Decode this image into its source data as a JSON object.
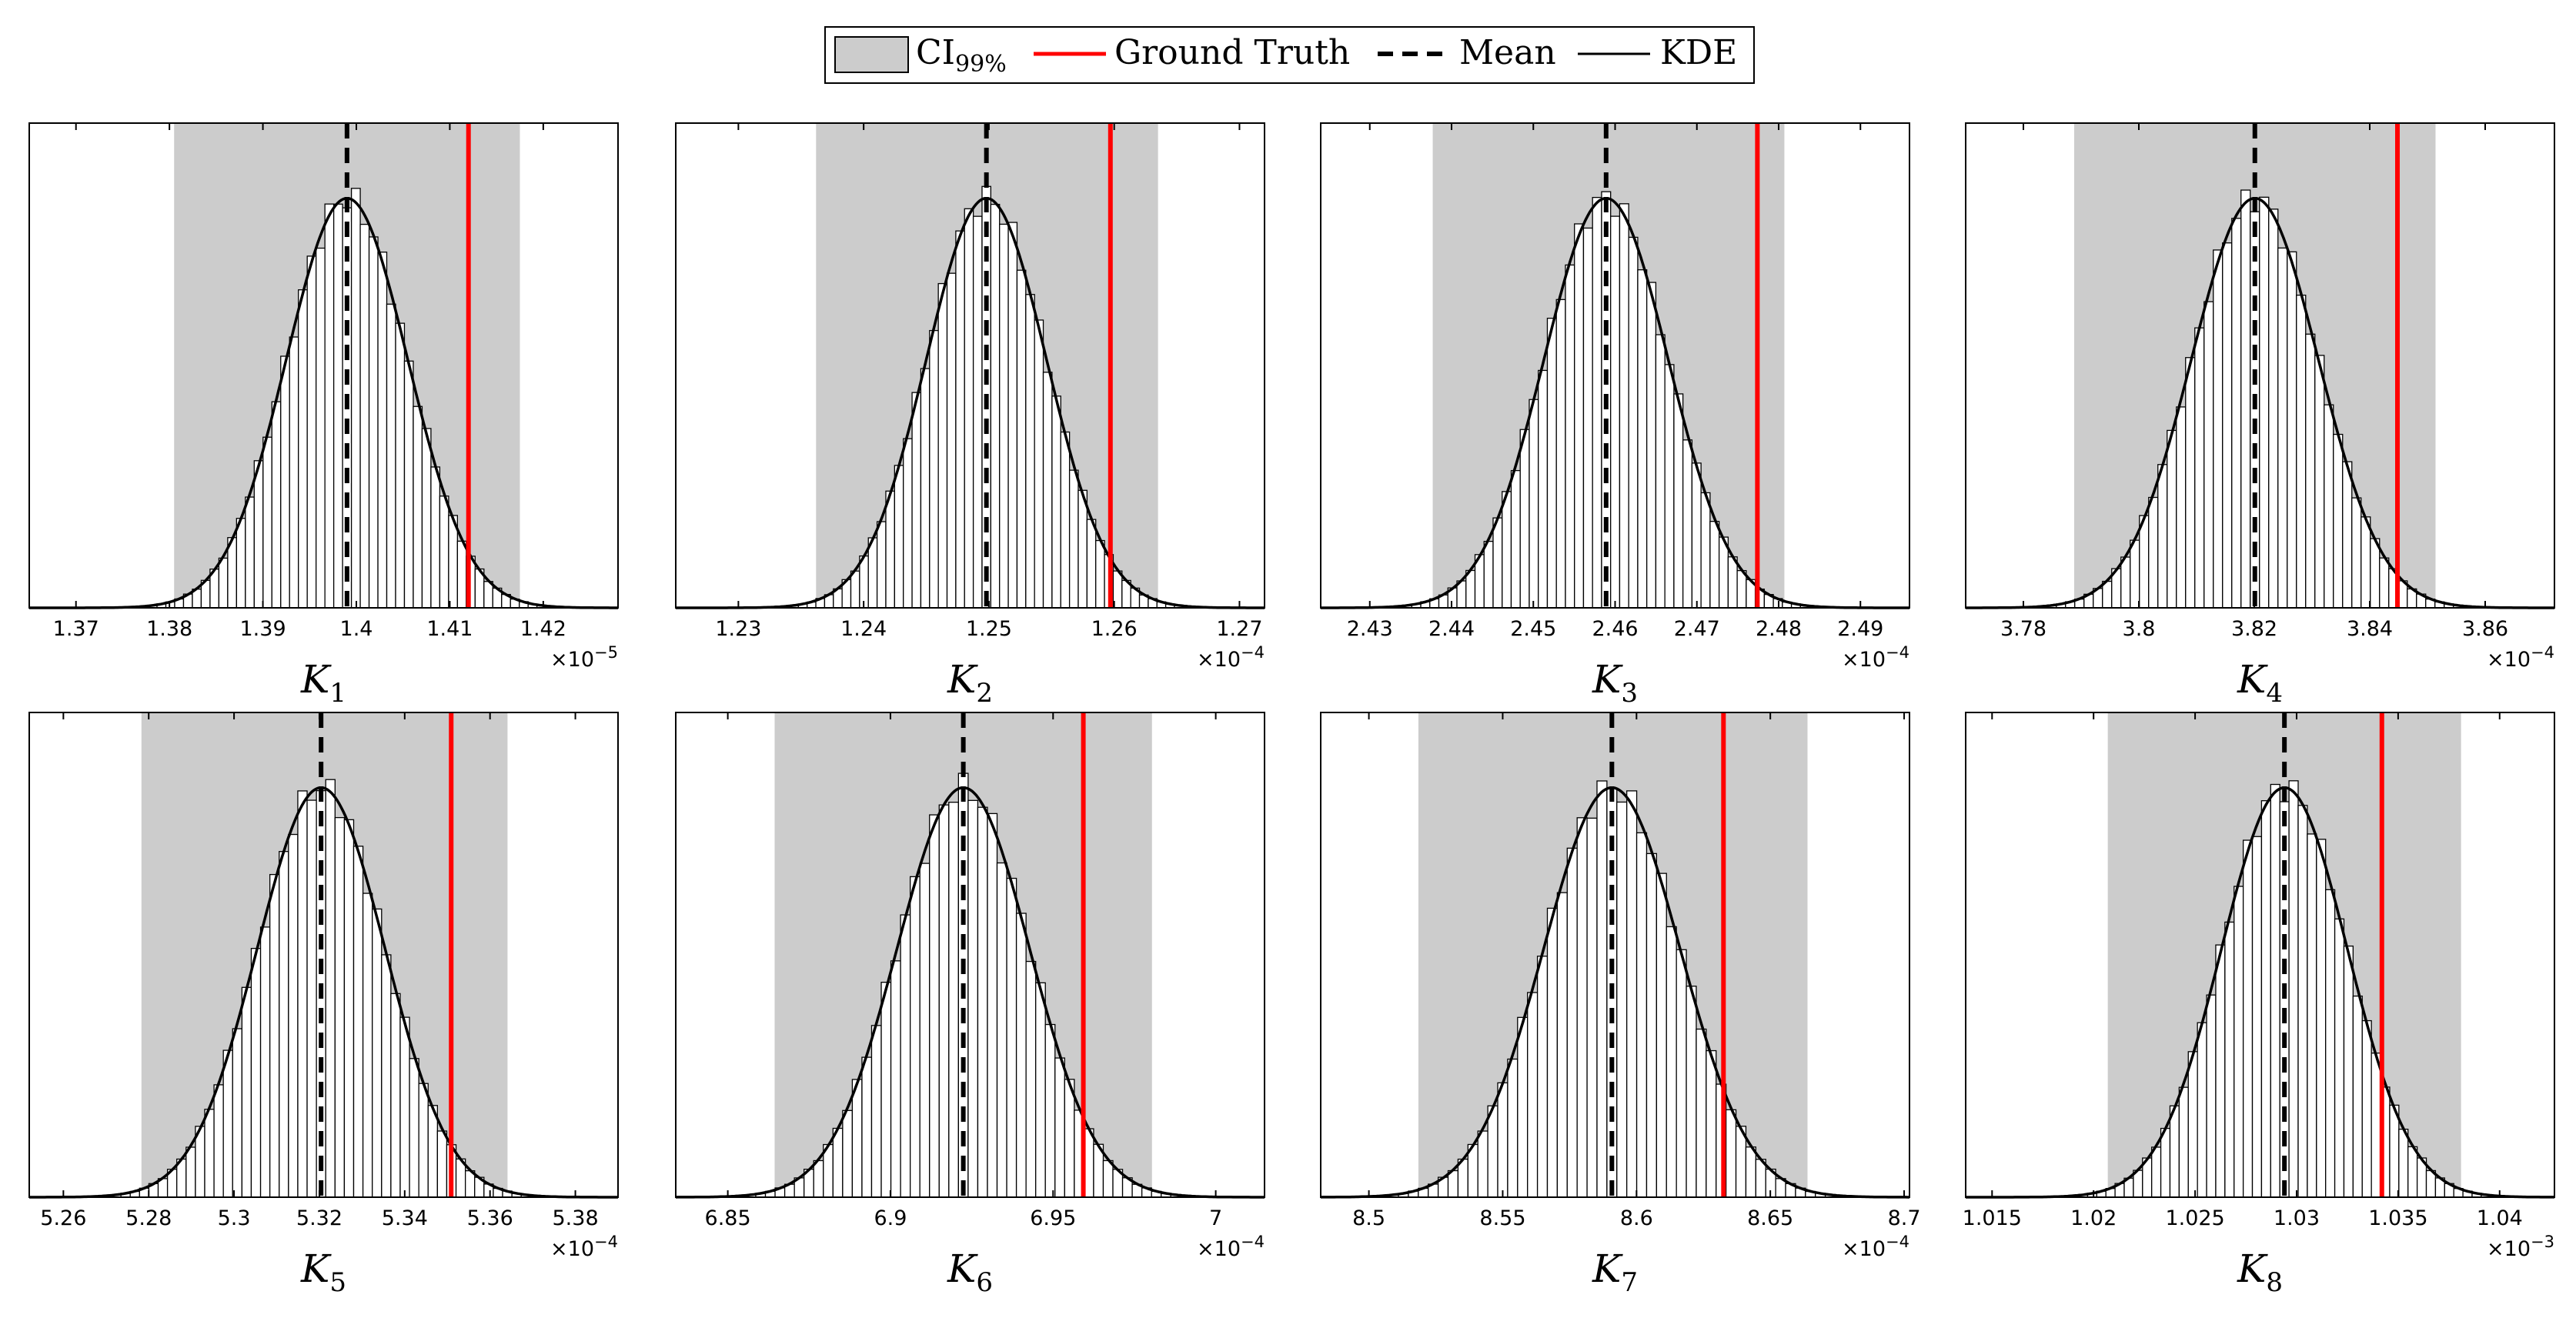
{
  "legend": {
    "ci_label": "CI",
    "ci_subscript": "99%",
    "truth_label": "Ground Truth",
    "mean_label": "Mean",
    "kde_label": "KDE"
  },
  "colors": {
    "ci_fill": "#cccccc",
    "truth": "#ff0000",
    "mean": "#000000",
    "kde": "#000000",
    "bar_edge": "#000000",
    "bar_fill": "#ffffff"
  },
  "chart_data": [
    {
      "type": "histogram",
      "xlabel": "K",
      "subscript": "1",
      "exponent": "-5",
      "xlim": [
        1.365,
        1.428
      ],
      "ticks": [
        1.37,
        1.38,
        1.39,
        1.4,
        1.41,
        1.42
      ],
      "tick_labels": [
        "1.37",
        "1.38",
        "1.39",
        "1.4",
        "1.41",
        "1.42"
      ],
      "ci": [
        1.3805,
        1.4175
      ],
      "mean": 1.399,
      "sd": 0.0065,
      "truth": 1.412
    },
    {
      "type": "histogram",
      "xlabel": "K",
      "subscript": "2",
      "exponent": "-4",
      "xlim": [
        1.225,
        1.272
      ],
      "ticks": [
        1.23,
        1.24,
        1.25,
        1.26,
        1.27
      ],
      "tick_labels": [
        "1.23",
        "1.24",
        "1.25",
        "1.26",
        "1.27"
      ],
      "ci": [
        1.2362,
        1.2635
      ],
      "mean": 1.2498,
      "sd": 0.0048,
      "truth": 1.2597
    },
    {
      "type": "histogram",
      "xlabel": "K",
      "subscript": "3",
      "exponent": "-4",
      "xlim": [
        2.424,
        2.496
      ],
      "ticks": [
        2.43,
        2.44,
        2.45,
        2.46,
        2.47,
        2.48,
        2.49
      ],
      "tick_labels": [
        "2.43",
        "2.44",
        "2.45",
        "2.46",
        "2.47",
        "2.48",
        "2.49"
      ],
      "ci": [
        2.4377,
        2.4807
      ],
      "mean": 2.4589,
      "sd": 0.0076,
      "truth": 2.4774
    },
    {
      "type": "histogram",
      "xlabel": "K",
      "subscript": "4",
      "exponent": "-4",
      "xlim": [
        3.77,
        3.872
      ],
      "ticks": [
        3.78,
        3.8,
        3.82,
        3.84,
        3.86
      ],
      "tick_labels": [
        "3.78",
        "3.8",
        "3.82",
        "3.84",
        "3.86"
      ],
      "ci": [
        3.7888,
        3.8514
      ],
      "mean": 3.8201,
      "sd": 0.011,
      "truth": 3.8448
    },
    {
      "type": "histogram",
      "xlabel": "K",
      "subscript": "5",
      "exponent": "-4",
      "xlim": [
        5.252,
        5.39
      ],
      "ticks": [
        5.26,
        5.28,
        5.3,
        5.32,
        5.34,
        5.36,
        5.38
      ],
      "tick_labels": [
        "5.26",
        "5.28",
        "5.3",
        "5.32",
        "5.34",
        "5.36",
        "5.38"
      ],
      "ci": [
        5.2783,
        5.3641
      ],
      "mean": 5.3204,
      "sd": 0.015,
      "truth": 5.3509
    },
    {
      "type": "histogram",
      "xlabel": "K",
      "subscript": "6",
      "exponent": "-4",
      "xlim": [
        6.834,
        7.015
      ],
      "ticks": [
        6.85,
        6.9,
        6.95,
        7
      ],
      "tick_labels": [
        "6.85",
        "6.9",
        "6.95",
        "7"
      ],
      "ci": [
        6.8644,
        6.9804
      ],
      "mean": 6.9224,
      "sd": 0.0204,
      "truth": 6.9593
    },
    {
      "type": "histogram",
      "xlabel": "K",
      "subscript": "7",
      "exponent": "-4",
      "xlim": [
        8.482,
        8.702
      ],
      "ticks": [
        8.5,
        8.55,
        8.6,
        8.65,
        8.7
      ],
      "tick_labels": [
        "8.5",
        "8.55",
        "8.6",
        "8.65",
        "8.7"
      ],
      "ci": [
        8.5185,
        8.6639
      ],
      "mean": 8.5908,
      "sd": 0.0255,
      "truth": 8.6325
    },
    {
      "type": "histogram",
      "xlabel": "K",
      "subscript": "8",
      "exponent": "-3",
      "xlim": [
        1.0137,
        1.0427
      ],
      "ticks": [
        1.015,
        1.02,
        1.025,
        1.03,
        1.035,
        1.04
      ],
      "tick_labels": [
        "1.015",
        "1.02",
        "1.025",
        "1.03",
        "1.035",
        "1.04"
      ],
      "ci": [
        1.0207,
        1.0381
      ],
      "mean": 1.0294,
      "sd": 0.0031,
      "truth": 1.0342
    }
  ]
}
